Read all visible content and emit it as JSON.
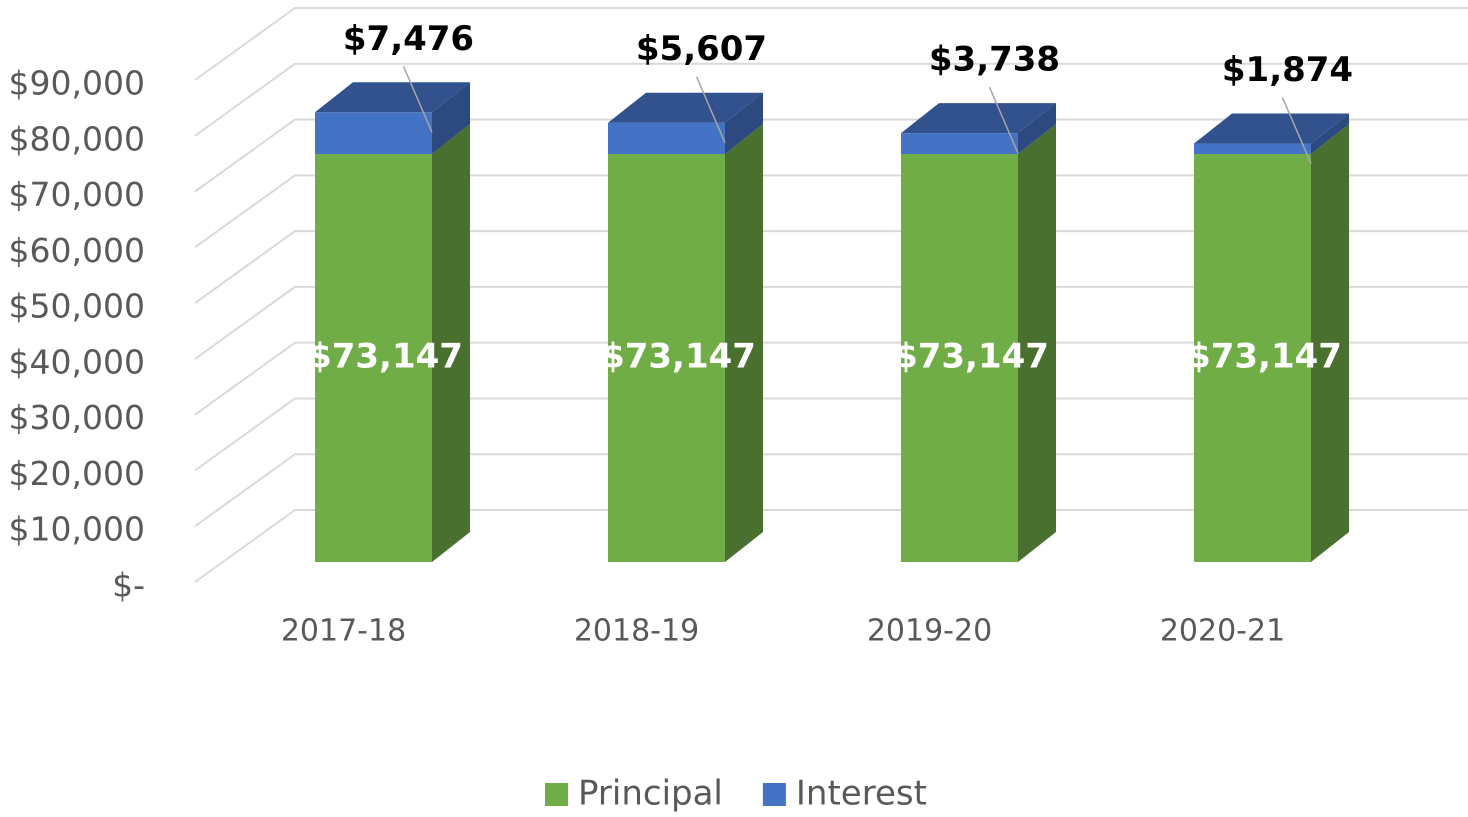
{
  "chart_data": {
    "type": "bar3d_stacked",
    "categories": [
      "2017-18",
      "2018-19",
      "2019-20",
      "2020-21"
    ],
    "series": [
      {
        "name": "Principal",
        "color": "#70ad47",
        "values": [
          73147,
          73147,
          73147,
          73147
        ],
        "value_labels": [
          "$73,147",
          "$73,147",
          "$73,147",
          "$73,147"
        ]
      },
      {
        "name": "Interest",
        "color": "#4472c4",
        "values": [
          7476,
          5607,
          3738,
          1874
        ],
        "value_labels": [
          "$7,476",
          "$5,607",
          "$3,738",
          "$1,874"
        ]
      }
    ],
    "ylim": [
      0,
      90000
    ],
    "yticks": [
      {
        "value": 0,
        "label": "$-"
      },
      {
        "value": 10000,
        "label": "$10,000"
      },
      {
        "value": 20000,
        "label": "$20,000"
      },
      {
        "value": 30000,
        "label": "$30,000"
      },
      {
        "value": 40000,
        "label": "$40,000"
      },
      {
        "value": 50000,
        "label": "$50,000"
      },
      {
        "value": 60000,
        "label": "$60,000"
      },
      {
        "value": 70000,
        "label": "$70,000"
      },
      {
        "value": 80000,
        "label": "$80,000"
      },
      {
        "value": 90000,
        "label": "$90,000"
      }
    ],
    "grid": true,
    "legend": "bottom"
  }
}
